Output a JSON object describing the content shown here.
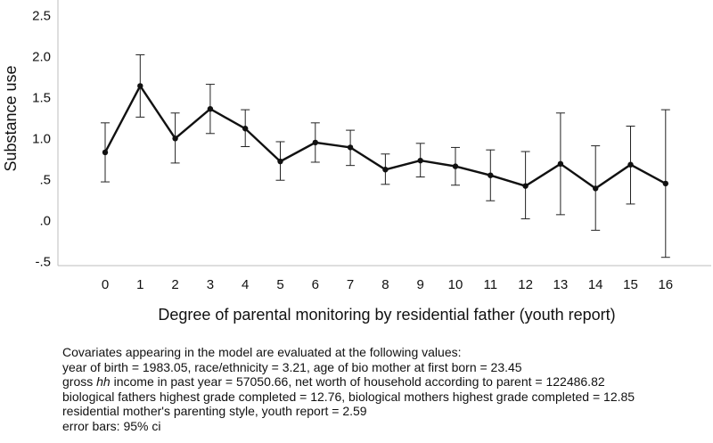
{
  "chart_data": {
    "type": "line",
    "title": "",
    "xlabel": "Degree of parental monitoring by residential father (youth report)",
    "ylabel": "Substance use",
    "x": [
      0,
      1,
      2,
      3,
      4,
      5,
      6,
      7,
      8,
      9,
      10,
      11,
      12,
      13,
      14,
      15,
      16
    ],
    "xtick_labels": [
      "0",
      "1",
      "2",
      "3",
      "4",
      "5",
      "6",
      "7",
      "8",
      "9",
      "10",
      "11",
      "12",
      "13",
      "14",
      "15",
      "16"
    ],
    "series": [
      {
        "name": "Substance use",
        "values": [
          0.83,
          1.64,
          1.0,
          1.36,
          1.12,
          0.72,
          0.95,
          0.89,
          0.62,
          0.73,
          0.66,
          0.55,
          0.42,
          0.69,
          0.39,
          0.68,
          0.45
        ],
        "ci_lower": [
          0.47,
          1.26,
          0.7,
          1.06,
          0.9,
          0.49,
          0.71,
          0.67,
          0.44,
          0.53,
          0.43,
          0.24,
          0.02,
          0.07,
          -0.12,
          0.2,
          -0.45
        ],
        "ci_upper": [
          1.19,
          2.02,
          1.31,
          1.66,
          1.35,
          0.96,
          1.19,
          1.1,
          0.81,
          0.94,
          0.89,
          0.86,
          0.84,
          1.31,
          0.91,
          1.15,
          1.35
        ]
      }
    ],
    "yticks": [
      2.5,
      2.0,
      1.5,
      1.0,
      0.5,
      0.0,
      -0.5
    ],
    "ytick_labels": [
      "2.5",
      "2.0",
      "1.5",
      "1.0",
      ".5",
      ".0",
      "-.5"
    ],
    "ylim": [
      -0.56,
      2.56
    ],
    "grid": false,
    "legend": "none"
  },
  "notes": {
    "lines": [
      "Covariates appearing in the model are evaluated at the following values:",
      "year of birth = 1983.05, race/ethnicity = 3.21, age of bio mother at first born = 23.45",
      "biological fathers highest grade completed = 12.76, biological mothers highest grade completed = 12.85",
      "residential mother's parenting style, youth report = 2.59",
      "error bars: 95% ci"
    ],
    "income_line": {
      "pre": "gross ",
      "emph": "hh",
      "post": " income in past year = 57050.66, net worth of household according to parent = 122486.82"
    }
  }
}
